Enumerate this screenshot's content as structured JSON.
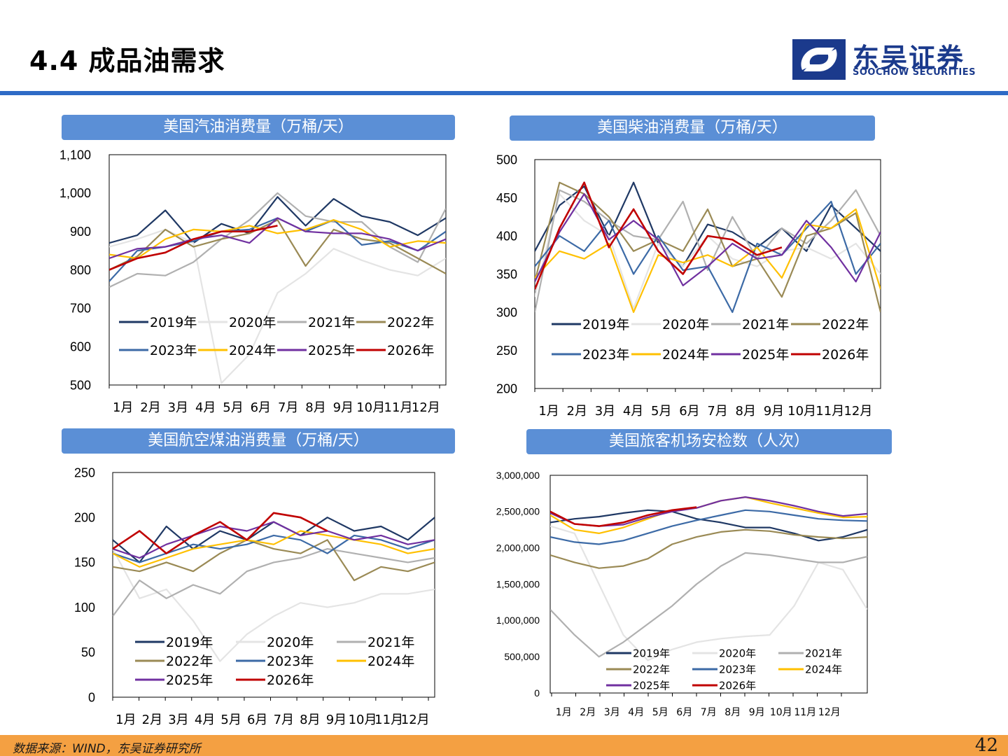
{
  "header": {
    "title": "4.4 成品油需求"
  },
  "logo": {
    "name_cn": "东吴证券",
    "name_en": "SOOCHOW SECURITIES",
    "brand_color": "#1b3a8c"
  },
  "colors": {
    "2019年": "#1f3864",
    "2020年": "#e4e4e4",
    "2021年": "#b0b0b0",
    "2022年": "#9a8a55",
    "2023年": "#3c6aa6",
    "2024年": "#ffc000",
    "2025年": "#7030a0",
    "2026年": "#c00000",
    "title_bar": "#5b8fd6",
    "accent_rule": "#2e6bc6",
    "footer": "#f4a042"
  },
  "footer": {
    "source": "数据来源：WIND，东吴证券研究所",
    "page_number": "42"
  },
  "chart_data": [
    {
      "type": "line",
      "title": "美国汽油消费量（万桶/天）",
      "x_tick_labels": [
        "1月",
        "2月",
        "3月",
        "4月",
        "5月",
        "6月",
        "7月",
        "8月",
        "9月",
        "10月",
        "11月",
        "12月"
      ],
      "ylim": [
        500,
        1100
      ],
      "y_tick_labels": [
        "1,100",
        "1,000",
        "900",
        "800",
        "700",
        "600",
        "500"
      ],
      "grid": false,
      "legend": "bottom-inside",
      "series": [
        {
          "name": "2019年",
          "values": [
            870,
            890,
            955,
            870,
            920,
            895,
            990,
            915,
            985,
            940,
            925,
            890,
            935
          ]
        },
        {
          "name": "2020年",
          "values": [
            860,
            880,
            905,
            870,
            505,
            580,
            740,
            790,
            855,
            825,
            800,
            785,
            830
          ]
        },
        {
          "name": "2021年",
          "values": [
            755,
            790,
            785,
            820,
            880,
            930,
            1000,
            940,
            925,
            925,
            860,
            820,
            960
          ]
        },
        {
          "name": "2022年",
          "values": [
            800,
            835,
            905,
            860,
            880,
            895,
            930,
            810,
            905,
            880,
            870,
            830,
            790
          ]
        },
        {
          "name": "2023年",
          "values": [
            770,
            850,
            860,
            875,
            900,
            905,
            935,
            900,
            930,
            865,
            875,
            850,
            900
          ]
        },
        {
          "name": "2024年",
          "values": [
            840,
            830,
            880,
            905,
            900,
            915,
            895,
            905,
            930,
            905,
            860,
            875,
            870
          ]
        },
        {
          "name": "2025年",
          "values": [
            830,
            855,
            860,
            880,
            890,
            870,
            935,
            900,
            895,
            895,
            880,
            850,
            880
          ]
        },
        {
          "name": "2026年",
          "values": [
            800,
            830,
            845,
            880,
            900,
            900,
            915
          ]
        }
      ]
    },
    {
      "type": "line",
      "title": "美国柴油消费量（万桶/天）",
      "x_tick_labels": [
        "1月",
        "2月",
        "3月",
        "4月",
        "5月",
        "6月",
        "7月",
        "8月",
        "9月",
        "10月",
        "11月",
        "12月"
      ],
      "ylim": [
        200,
        500
      ],
      "y_tick_labels": [
        "500",
        "450",
        "400",
        "350",
        "300",
        "250",
        "200"
      ],
      "grid": false,
      "legend": "bottom-inside",
      "series": [
        {
          "name": "2019年",
          "values": [
            380,
            440,
            465,
            400,
            470,
            390,
            360,
            415,
            405,
            385,
            410,
            380,
            440,
            410,
            380
          ]
        },
        {
          "name": "2020年",
          "values": [
            320,
            455,
            420,
            400,
            305,
            390,
            360,
            400,
            370,
            360,
            380,
            385,
            370,
            390,
            350
          ]
        },
        {
          "name": "2021年",
          "values": [
            300,
            460,
            445,
            420,
            400,
            395,
            445,
            355,
            425,
            370,
            410,
            390,
            420,
            460,
            400
          ]
        },
        {
          "name": "2022年",
          "values": [
            340,
            470,
            455,
            425,
            380,
            395,
            380,
            435,
            360,
            370,
            320,
            400,
            410,
            430,
            300
          ]
        },
        {
          "name": "2023年",
          "values": [
            360,
            400,
            380,
            420,
            350,
            400,
            355,
            360,
            300,
            390,
            375,
            410,
            445,
            350,
            390
          ]
        },
        {
          "name": "2024年",
          "values": [
            345,
            380,
            370,
            390,
            300,
            375,
            365,
            375,
            360,
            385,
            345,
            415,
            410,
            435,
            330
          ]
        },
        {
          "name": "2025年",
          "values": [
            340,
            405,
            455,
            395,
            420,
            395,
            335,
            360,
            390,
            370,
            375,
            420,
            385,
            340,
            405
          ]
        },
        {
          "name": "2026年",
          "values": [
            330,
            410,
            470,
            385,
            435,
            380,
            350,
            400,
            395,
            375,
            385
          ]
        }
      ]
    },
    {
      "type": "line",
      "title": "美国航空煤油消费量（万桶/天）",
      "x_tick_labels": [
        "1月",
        "2月",
        "3月",
        "4月",
        "5月",
        "6月",
        "7月",
        "8月",
        "9月",
        "10月",
        "11月",
        "12月"
      ],
      "ylim": [
        0,
        250
      ],
      "y_tick_labels": [
        "250",
        "200",
        "150",
        "100",
        "50",
        "0"
      ],
      "grid": false,
      "legend": "bottom-inside",
      "series": [
        {
          "name": "2019年",
          "values": [
            175,
            150,
            190,
            165,
            185,
            175,
            195,
            180,
            200,
            185,
            190,
            175,
            200
          ]
        },
        {
          "name": "2020年",
          "values": [
            165,
            110,
            120,
            85,
            40,
            70,
            90,
            105,
            100,
            105,
            115,
            115,
            120
          ]
        },
        {
          "name": "2021年",
          "values": [
            90,
            130,
            110,
            125,
            115,
            140,
            150,
            155,
            165,
            160,
            155,
            150,
            155
          ]
        },
        {
          "name": "2022年",
          "values": [
            145,
            140,
            150,
            140,
            160,
            175,
            165,
            160,
            175,
            130,
            145,
            140,
            150
          ]
        },
        {
          "name": "2023年",
          "values": [
            160,
            150,
            160,
            170,
            165,
            170,
            180,
            175,
            160,
            180,
            175,
            165,
            175
          ]
        },
        {
          "name": "2024年",
          "values": [
            160,
            145,
            155,
            165,
            170,
            175,
            170,
            185,
            180,
            175,
            170,
            160,
            165
          ]
        },
        {
          "name": "2025年",
          "values": [
            165,
            155,
            170,
            180,
            190,
            185,
            195,
            180,
            185,
            175,
            180,
            170,
            175
          ]
        },
        {
          "name": "2026年",
          "values": [
            165,
            185,
            160,
            180,
            195,
            175,
            205,
            200,
            185
          ]
        }
      ]
    },
    {
      "type": "line",
      "title": "美国旅客机场安检数（人次）",
      "x_tick_labels": [
        "1月",
        "2月",
        "3月",
        "4月",
        "5月",
        "6月",
        "7月",
        "8月",
        "9月",
        "10月",
        "11月",
        "12月"
      ],
      "ylim": [
        0,
        3000000
      ],
      "y_tick_labels": [
        "3,000,000",
        "2,500,000",
        "2,000,000",
        "1,500,000",
        "1,000,000",
        "500,000",
        "0"
      ],
      "grid": false,
      "legend": "bottom-inside",
      "series": [
        {
          "name": "2019年",
          "values": [
            2350000,
            2400000,
            2430000,
            2480000,
            2520000,
            2500000,
            2400000,
            2350000,
            2280000,
            2280000,
            2200000,
            2100000,
            2150000,
            2250000
          ]
        },
        {
          "name": "2020年",
          "values": [
            2300000,
            2200000,
            1500000,
            800000,
            450000,
            600000,
            700000,
            750000,
            780000,
            800000,
            1200000,
            1800000,
            1700000,
            1150000
          ]
        },
        {
          "name": "2021年",
          "values": [
            1150000,
            800000,
            500000,
            700000,
            950000,
            1200000,
            1500000,
            1750000,
            1930000,
            1900000,
            1850000,
            1800000,
            1800000,
            1880000
          ]
        },
        {
          "name": "2022年",
          "values": [
            1900000,
            1800000,
            1720000,
            1750000,
            1850000,
            2050000,
            2150000,
            2220000,
            2250000,
            2230000,
            2180000,
            2150000,
            2130000,
            2150000
          ]
        },
        {
          "name": "2023年",
          "values": [
            2150000,
            2080000,
            2050000,
            2100000,
            2200000,
            2300000,
            2380000,
            2450000,
            2520000,
            2500000,
            2450000,
            2400000,
            2380000,
            2370000
          ]
        },
        {
          "name": "2024年",
          "values": [
            2450000,
            2250000,
            2200000,
            2280000,
            2400000,
            2520000,
            2550000,
            2650000,
            2700000,
            2620000,
            2550000,
            2480000,
            2420000,
            2430000
          ]
        },
        {
          "name": "2025年",
          "values": [
            2480000,
            2330000,
            2300000,
            2320000,
            2420000,
            2500000,
            2550000,
            2650000,
            2700000,
            2650000,
            2580000,
            2500000,
            2440000,
            2470000
          ]
        },
        {
          "name": "2026年",
          "values": [
            2500000,
            2330000,
            2300000,
            2350000,
            2450000,
            2520000,
            2560000
          ]
        }
      ]
    }
  ]
}
